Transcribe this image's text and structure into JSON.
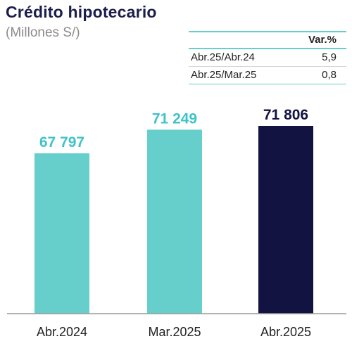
{
  "header": {
    "title": "Crédito hipotecario",
    "subtitle": "(Millones S/)"
  },
  "variation_table": {
    "header": "Var.%",
    "rows": [
      {
        "label": "Abr.25/Abr.24",
        "value": "5,9"
      },
      {
        "label": "Abr.25/Mar.25",
        "value": "0,8"
      }
    ]
  },
  "colors": {
    "accent": "#66cfcc",
    "highlight": "#121340",
    "title": "#1b1d4a"
  },
  "chart_data": {
    "type": "bar",
    "categories": [
      "Abr.2024",
      "Mar.2025",
      "Abr.2025"
    ],
    "values": [
      67797,
      71249,
      71806
    ],
    "value_labels": [
      "67 797",
      "71 249",
      "71 806"
    ],
    "bar_colors": [
      "#66cfcc",
      "#66cfcc",
      "#121340"
    ],
    "label_colors": [
      "#3ec3c9",
      "#3ec3c9",
      "#121340"
    ],
    "title": "Crédito hipotecario",
    "xlabel": "",
    "ylabel": "",
    "grid": false,
    "legend": "none"
  }
}
